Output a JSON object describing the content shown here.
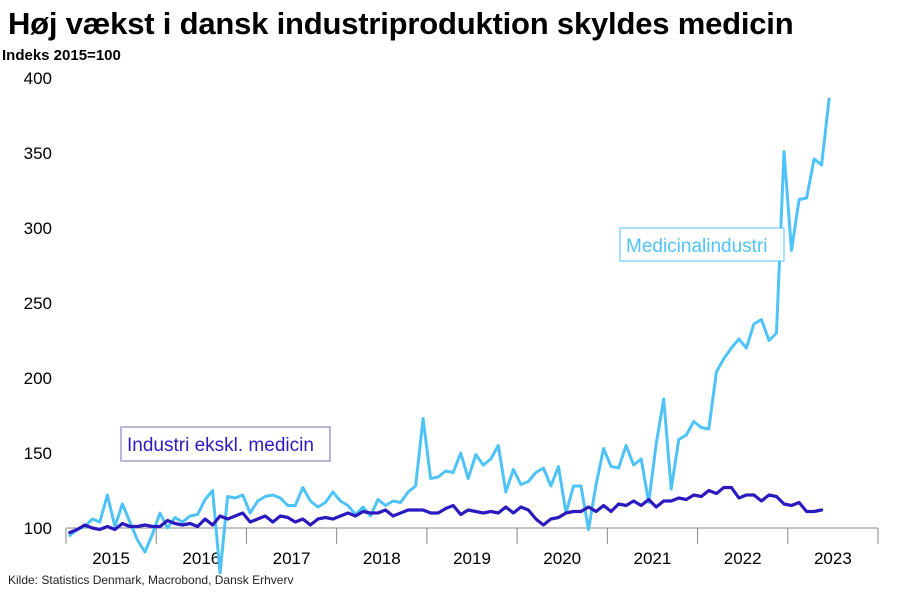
{
  "title": "Høj vækst i dansk industriproduktion skyldes medicin",
  "unit_label": "Indeks 2015=100",
  "source": "Kilde: Statistics Denmark, Macrobond, Dansk Erhverv",
  "colors": {
    "medicinal": "#4fc3f7",
    "industry": "#2b1bbf",
    "axis": "#888888"
  },
  "chart_data": {
    "type": "line",
    "xlabel": "",
    "ylabel": "Indeks 2015=100",
    "x_start": "2015-01",
    "x_frequency": "monthly",
    "xlim": [
      "2015-01",
      "2023-12"
    ],
    "ylim": [
      100,
      400
    ],
    "yticks": [
      100,
      150,
      200,
      250,
      300,
      350,
      400
    ],
    "xtick_labels": [
      "2015",
      "2016",
      "2017",
      "2018",
      "2019",
      "2020",
      "2021",
      "2022",
      "2023"
    ],
    "grid": false,
    "series": [
      {
        "name": "Medicinalindustri",
        "color": "#4fc3f7",
        "values": [
          95,
          99,
          101,
          106,
          104,
          122,
          101,
          116,
          104,
          92,
          84,
          96,
          110,
          100,
          107,
          104,
          108,
          109,
          119,
          125,
          70,
          121,
          120,
          122,
          110,
          118,
          121,
          122,
          120,
          115,
          115,
          127,
          118,
          114,
          117,
          124,
          118,
          115,
          109,
          114,
          108,
          119,
          115,
          118,
          117,
          124,
          128,
          173,
          133,
          134,
          138,
          137,
          150,
          133,
          149,
          142,
          146,
          155,
          124,
          139,
          129,
          131,
          137,
          140,
          128,
          141,
          110,
          128,
          128,
          99,
          129,
          153,
          141,
          140,
          155,
          142,
          146,
          117,
          156,
          186,
          126,
          159,
          162,
          171,
          167,
          166,
          204,
          213,
          220,
          226,
          220,
          236,
          239,
          225,
          230,
          351,
          285,
          319,
          320,
          346,
          342,
          386
        ]
      },
      {
        "name": "Industri ekskl. medicin",
        "color": "#2b1bbf",
        "values": [
          97,
          99,
          102,
          100,
          99,
          101,
          99,
          103,
          101,
          101,
          102,
          101,
          101,
          105,
          103,
          102,
          103,
          101,
          106,
          102,
          108,
          106,
          108,
          110,
          104,
          106,
          108,
          104,
          108,
          107,
          104,
          106,
          102,
          106,
          107,
          106,
          108,
          110,
          108,
          111,
          110,
          110,
          112,
          108,
          110,
          112,
          112,
          112,
          110,
          110,
          113,
          115,
          109,
          112,
          111,
          110,
          111,
          110,
          114,
          110,
          114,
          112,
          106,
          102,
          106,
          107,
          110,
          111,
          111,
          114,
          111,
          115,
          111,
          116,
          115,
          118,
          115,
          119,
          114,
          118,
          118,
          120,
          119,
          122,
          121,
          125,
          123,
          127,
          127,
          120,
          122,
          122,
          118,
          122,
          121,
          116,
          115,
          117,
          111,
          111,
          112
        ]
      }
    ],
    "annotations": [
      {
        "text": "Medicinalindustri",
        "series": "Medicinalindustri"
      },
      {
        "text": "Industri ekskl. medicin",
        "series": "Industri ekskl. medicin"
      }
    ]
  }
}
